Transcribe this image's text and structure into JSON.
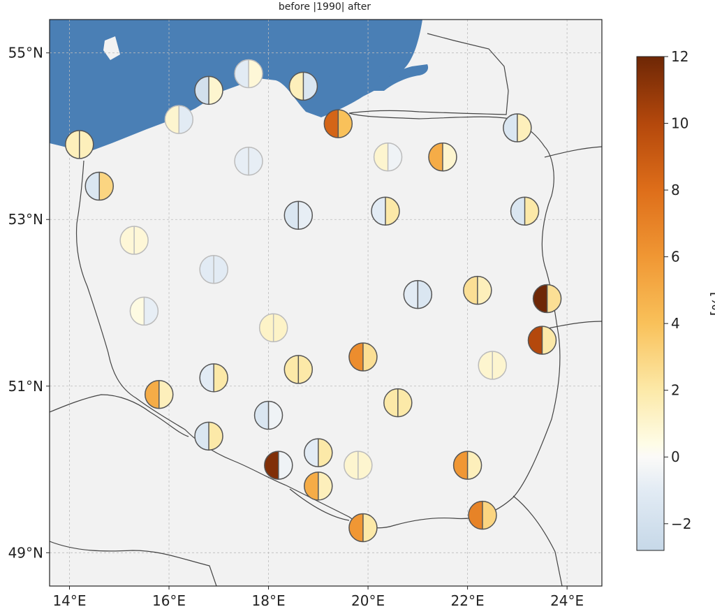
{
  "title": "before |1990| after",
  "map": {
    "lon_range": [
      13.6,
      24.7
    ],
    "lat_range": [
      48.6,
      55.4
    ],
    "x_ticks": [
      {
        "value": 14,
        "label": "14°E"
      },
      {
        "value": 16,
        "label": "16°E"
      },
      {
        "value": 18,
        "label": "18°E"
      },
      {
        "value": 20,
        "label": "20°E"
      },
      {
        "value": 22,
        "label": "22°E"
      },
      {
        "value": 24,
        "label": "24°E"
      }
    ],
    "y_ticks": [
      {
        "value": 49,
        "label": "49°N"
      },
      {
        "value": 51,
        "label": "51°N"
      },
      {
        "value": 53,
        "label": "53°N"
      },
      {
        "value": 55,
        "label": "55°N"
      }
    ],
    "grid": true,
    "colors": {
      "land": "#f2f2f2",
      "sea": "#4a7fb5",
      "border": "#444444",
      "grid": "#bbbbbb"
    }
  },
  "colorbar": {
    "label": "[%]",
    "min": -2.8,
    "max": 12,
    "ticks": [
      {
        "value": 12,
        "label": "12"
      },
      {
        "value": 10,
        "label": "10"
      },
      {
        "value": 8,
        "label": "8"
      },
      {
        "value": 6,
        "label": "6"
      },
      {
        "value": 4,
        "label": "4"
      },
      {
        "value": 2,
        "label": "2"
      },
      {
        "value": 0,
        "label": "0"
      },
      {
        "value": -2,
        "label": "−2"
      }
    ],
    "stops": [
      {
        "v": -2.8,
        "c": "#c6d8e8"
      },
      {
        "v": -1.0,
        "c": "#e2ebf4"
      },
      {
        "v": 0,
        "c": "#fbfaf8"
      },
      {
        "v": 0.4,
        "c": "#fefce6"
      },
      {
        "v": 2,
        "c": "#fce9a8"
      },
      {
        "v": 4,
        "c": "#f9c15a"
      },
      {
        "v": 6,
        "c": "#f09734"
      },
      {
        "v": 8,
        "c": "#de6e1a"
      },
      {
        "v": 10,
        "c": "#b4480c"
      },
      {
        "v": 12,
        "c": "#6e2706"
      }
    ]
  },
  "chart_data": {
    "type": "map",
    "title": "before |1990| after",
    "value_label": "[%]",
    "stations": [
      {
        "lon": 14.2,
        "lat": 53.9,
        "before": 1.5,
        "after": 1.5
      },
      {
        "lon": 14.6,
        "lat": 53.4,
        "before": -1.5,
        "after": 3.0
      },
      {
        "lon": 16.2,
        "lat": 54.2,
        "before": 1.0,
        "after": -1.0
      },
      {
        "lon": 16.8,
        "lat": 54.55,
        "before": -2.0,
        "after": 1.0
      },
      {
        "lon": 17.6,
        "lat": 54.75,
        "before": -1.0,
        "after": 0.8
      },
      {
        "lon": 18.7,
        "lat": 54.6,
        "before": 1.5,
        "after": -1.5
      },
      {
        "lon": 19.4,
        "lat": 54.15,
        "before": 8.5,
        "after": 4.0
      },
      {
        "lon": 17.6,
        "lat": 53.7,
        "before": -0.8,
        "after": -0.8
      },
      {
        "lon": 20.4,
        "lat": 53.75,
        "before": 1.0,
        "after": -0.5
      },
      {
        "lon": 21.5,
        "lat": 53.75,
        "before": 5.0,
        "after": 1.0
      },
      {
        "lon": 23.0,
        "lat": 54.1,
        "before": -1.5,
        "after": 1.5
      },
      {
        "lon": 18.6,
        "lat": 53.05,
        "before": -1.5,
        "after": -0.8
      },
      {
        "lon": 20.35,
        "lat": 53.1,
        "before": -1.0,
        "after": 2.0
      },
      {
        "lon": 23.15,
        "lat": 53.1,
        "before": -1.5,
        "after": 2.0
      },
      {
        "lon": 15.3,
        "lat": 52.75,
        "before": 0.8,
        "after": 0.8
      },
      {
        "lon": 16.9,
        "lat": 52.4,
        "before": -1.0,
        "after": -1.0
      },
      {
        "lon": 15.5,
        "lat": 51.9,
        "before": 0.5,
        "after": -0.8
      },
      {
        "lon": 18.1,
        "lat": 51.7,
        "before": 1.2,
        "after": 1.2
      },
      {
        "lon": 21.0,
        "lat": 52.1,
        "before": -1.0,
        "after": -1.5
      },
      {
        "lon": 22.2,
        "lat": 52.15,
        "before": 2.5,
        "after": 1.5
      },
      {
        "lon": 23.6,
        "lat": 52.05,
        "before": 12.0,
        "after": 2.5
      },
      {
        "lon": 18.6,
        "lat": 51.2,
        "before": 2.0,
        "after": 2.0
      },
      {
        "lon": 19.9,
        "lat": 51.35,
        "before": 6.5,
        "after": 2.5
      },
      {
        "lon": 23.5,
        "lat": 51.55,
        "before": 10.0,
        "after": 2.0
      },
      {
        "lon": 22.5,
        "lat": 51.25,
        "before": 1.0,
        "after": 1.0
      },
      {
        "lon": 15.8,
        "lat": 50.9,
        "before": 5.0,
        "after": 1.5
      },
      {
        "lon": 16.9,
        "lat": 51.1,
        "before": -1.0,
        "after": 2.0
      },
      {
        "lon": 20.6,
        "lat": 50.8,
        "before": 2.0,
        "after": 2.0
      },
      {
        "lon": 18.0,
        "lat": 50.65,
        "before": -1.5,
        "after": -0.5
      },
      {
        "lon": 16.8,
        "lat": 50.4,
        "before": -1.5,
        "after": 2.0
      },
      {
        "lon": 18.2,
        "lat": 50.05,
        "before": 11.5,
        "after": -0.5
      },
      {
        "lon": 19.0,
        "lat": 50.2,
        "before": -1.0,
        "after": 2.0
      },
      {
        "lon": 19.8,
        "lat": 50.05,
        "before": 1.0,
        "after": 1.0
      },
      {
        "lon": 19.0,
        "lat": 49.8,
        "before": 5.0,
        "after": 1.5
      },
      {
        "lon": 22.0,
        "lat": 50.05,
        "before": 6.0,
        "after": 1.5
      },
      {
        "lon": 22.3,
        "lat": 49.45,
        "before": 7.0,
        "after": 3.0
      },
      {
        "lon": 19.9,
        "lat": 49.3,
        "before": 6.0,
        "after": 2.0
      }
    ]
  }
}
